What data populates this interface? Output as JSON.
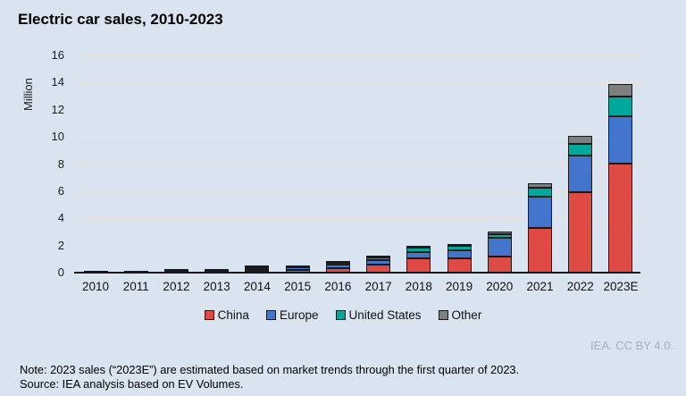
{
  "title": "Electric car sales, 2010-2023",
  "credit": "IEA. CC BY 4.0.",
  "note": "Note: 2023 sales (“2023E”) are estimated based on market trends through the first quarter of 2023.",
  "source": "Source: IEA analysis based on EV Volumes.",
  "chart_data": {
    "type": "bar",
    "stacked": true,
    "title": "Electric car sales, 2010-2023",
    "xlabel": "",
    "ylabel": "Million",
    "ylim": [
      0,
      16
    ],
    "ytick_step": 2,
    "grid": true,
    "legend_position": "bottom",
    "categories": [
      "2010",
      "2011",
      "2012",
      "2013",
      "2014",
      "2015",
      "2016",
      "2017",
      "2018",
      "2019",
      "2020",
      "2021",
      "2022",
      "2023E"
    ],
    "series": [
      {
        "name": "China",
        "color": "#df4a45",
        "values": [
          0.0,
          0.01,
          0.01,
          0.02,
          0.07,
          0.21,
          0.34,
          0.58,
          1.08,
          1.06,
          1.16,
          3.3,
          5.9,
          8.0
        ]
      },
      {
        "name": "Europe",
        "color": "#4375cf",
        "values": [
          0.0,
          0.01,
          0.03,
          0.07,
          0.1,
          0.19,
          0.22,
          0.31,
          0.41,
          0.59,
          1.4,
          2.3,
          2.7,
          3.5
        ]
      },
      {
        "name": "United States",
        "color": "#00a99c",
        "values": [
          0.0,
          0.02,
          0.05,
          0.1,
          0.12,
          0.11,
          0.16,
          0.2,
          0.36,
          0.33,
          0.3,
          0.63,
          0.9,
          1.5
        ]
      },
      {
        "name": "Other",
        "color": "#7f7f7f",
        "values": [
          0.0,
          0.01,
          0.03,
          0.03,
          0.03,
          0.04,
          0.04,
          0.09,
          0.13,
          0.15,
          0.2,
          0.35,
          0.6,
          0.9
        ]
      }
    ]
  }
}
